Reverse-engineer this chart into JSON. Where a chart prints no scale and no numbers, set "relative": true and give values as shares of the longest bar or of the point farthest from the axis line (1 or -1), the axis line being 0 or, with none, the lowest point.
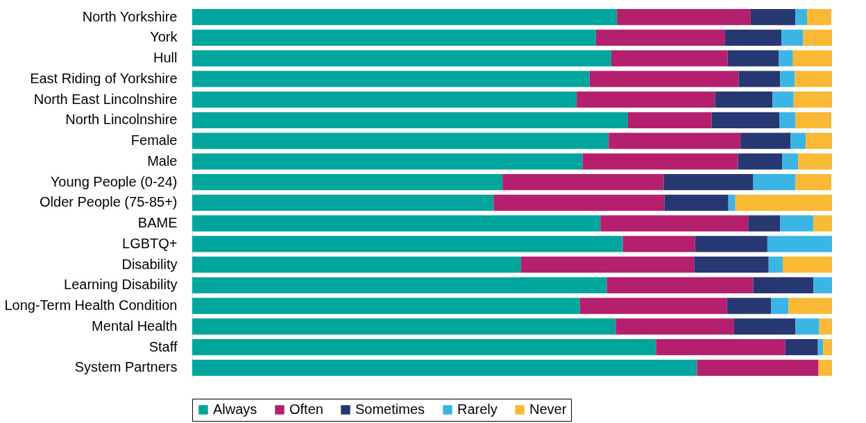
{
  "chart_data": {
    "type": "bar",
    "orientation": "horizontal",
    "stacked": true,
    "relative": true,
    "legend": "bottom",
    "categories": [
      "North Yorkshire",
      "York",
      "Hull",
      "East Riding of Yorkshire",
      "North East Lincolnshire",
      "North Lincolnshire",
      "Female",
      "Male",
      "Young People (0-24)",
      "Older People (75-85+)",
      "BAME",
      "LGBTQ+",
      "Disability",
      "Learning Disability",
      "Long-Term Health Condition",
      "Mental Health",
      "Staff",
      "System Partners"
    ],
    "series": [
      {
        "name": "Always",
        "color": "#00a59b",
        "values": [
          0.664,
          0.631,
          0.655,
          0.621,
          0.601,
          0.681,
          0.651,
          0.61,
          0.485,
          0.471,
          0.638,
          0.673,
          0.514,
          0.648,
          0.606,
          0.662,
          0.725,
          0.789
        ]
      },
      {
        "name": "Often",
        "color": "#b5206e",
        "values": [
          0.209,
          0.202,
          0.182,
          0.233,
          0.216,
          0.131,
          0.206,
          0.243,
          0.252,
          0.267,
          0.231,
          0.113,
          0.271,
          0.229,
          0.23,
          0.185,
          0.202,
          0.19
        ]
      },
      {
        "name": "Sometimes",
        "color": "#263772",
        "values": [
          0.07,
          0.088,
          0.08,
          0.065,
          0.09,
          0.106,
          0.078,
          0.069,
          0.14,
          0.1,
          0.05,
          0.113,
          0.116,
          0.094,
          0.069,
          0.096,
          0.051,
          0
        ]
      },
      {
        "name": "Rarely",
        "color": "#3bb4e6",
        "values": [
          0.018,
          0.034,
          0.022,
          0.023,
          0.033,
          0.025,
          0.024,
          0.025,
          0.066,
          0.011,
          0.052,
          0.101,
          0.022,
          0.029,
          0.027,
          0.037,
          0.008,
          0
        ]
      },
      {
        "name": "Never",
        "color": "#f9b934",
        "values": [
          0.038,
          0.045,
          0.061,
          0.058,
          0.06,
          0.056,
          0.041,
          0.053,
          0.056,
          0.151,
          0.029,
          0,
          0.077,
          0,
          0.068,
          0.02,
          0.014,
          0.021
        ]
      }
    ]
  }
}
